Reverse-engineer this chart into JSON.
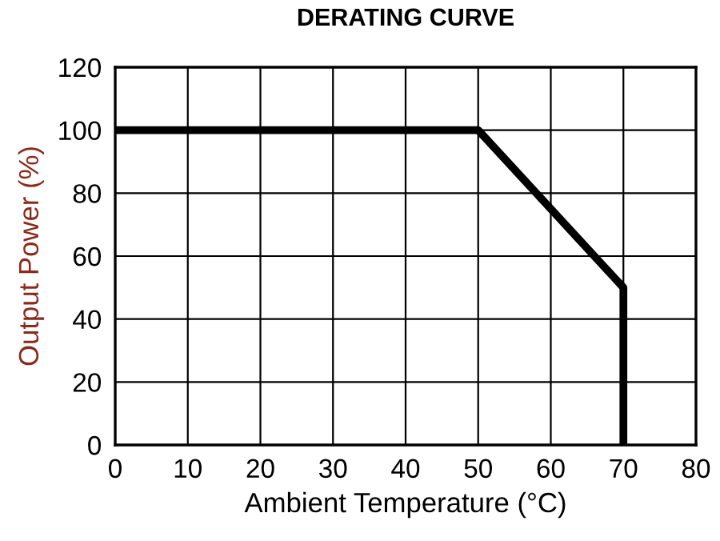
{
  "chart_data": {
    "type": "line",
    "title": "DERATING CURVE",
    "xlabel": "Ambient Temperature (°C)",
    "ylabel": "Output Power (%)",
    "x": [
      0,
      50,
      70,
      70
    ],
    "series": [
      {
        "color": "#000000",
        "values": [
          100,
          100,
          50,
          0
        ]
      }
    ],
    "xlim": [
      0,
      80
    ],
    "xticks": [
      0,
      10,
      20,
      30,
      40,
      50,
      60,
      70,
      80
    ],
    "ylim": [
      0,
      120
    ],
    "yticks": [
      0,
      20,
      40,
      60,
      80,
      100,
      120
    ],
    "grid": true,
    "marker": "none",
    "line_style": "solid"
  }
}
